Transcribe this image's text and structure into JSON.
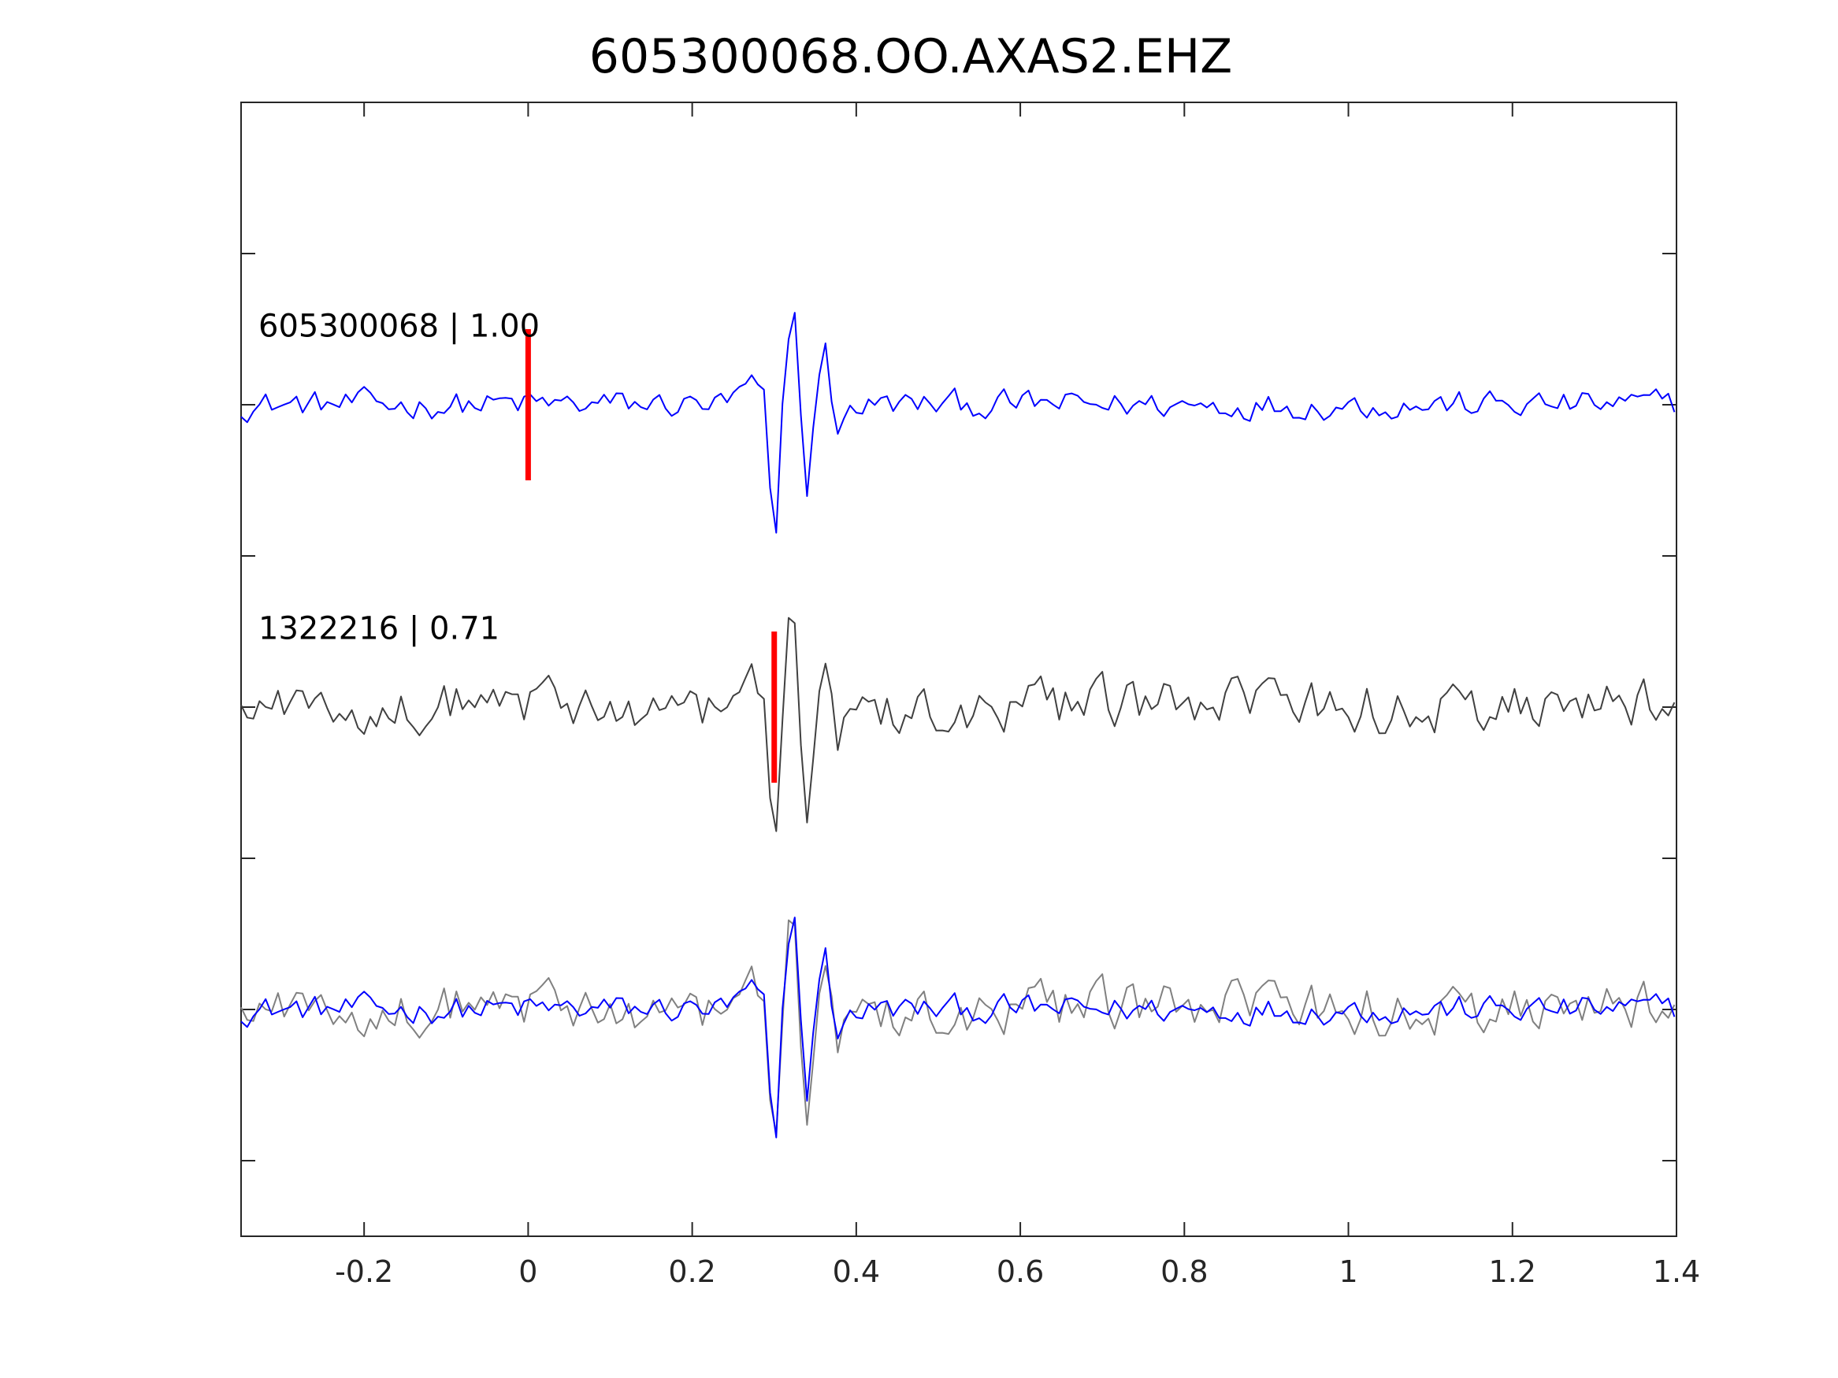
{
  "chart_data": {
    "type": "line",
    "title": "605300068.OO.AXAS2.EHZ",
    "xlabel": "",
    "ylabel": "",
    "xlim": [
      -0.35,
      1.4
    ],
    "xticks": [
      -0.2,
      0,
      0.2,
      0.4,
      0.6,
      0.8,
      1,
      1.2,
      1.4
    ],
    "xtick_labels": [
      "-0.2",
      "0",
      "0.2",
      "0.4",
      "0.6",
      "0.8",
      "1",
      "1.2",
      "1.4"
    ],
    "ylim": [
      0,
      7.5
    ],
    "yticks": [
      0.5,
      1.5,
      2.5,
      3.5,
      4.5,
      5.5,
      6.5
    ],
    "grid": false,
    "colors": {
      "template": "#0000ff",
      "detection": "#404040",
      "detection_overlay": "#808080",
      "pick": "#ff0000"
    },
    "traces": [
      {
        "label": "605300068 | 1.00",
        "id": "605300068",
        "cc": "1.00",
        "offset": 5.5,
        "color": "#0000ff",
        "pick_time": 0.0,
        "role": "template"
      },
      {
        "label": "1322216 | 0.71",
        "id": "1322216",
        "cc": "0.71",
        "offset": 3.5,
        "color": "#404040",
        "pick_time": 0.3,
        "role": "detection"
      }
    ],
    "overlay": {
      "offset": 1.5,
      "series": [
        "detection",
        "template"
      ]
    },
    "arrival_peaks": [
      {
        "t": 0.3,
        "a": -1.05
      },
      {
        "t": 0.322,
        "a": 0.75
      },
      {
        "t": 0.34,
        "a": -0.55
      },
      {
        "t": 0.362,
        "a": 0.45
      },
      {
        "t": 0.38,
        "a": -0.25
      }
    ]
  }
}
